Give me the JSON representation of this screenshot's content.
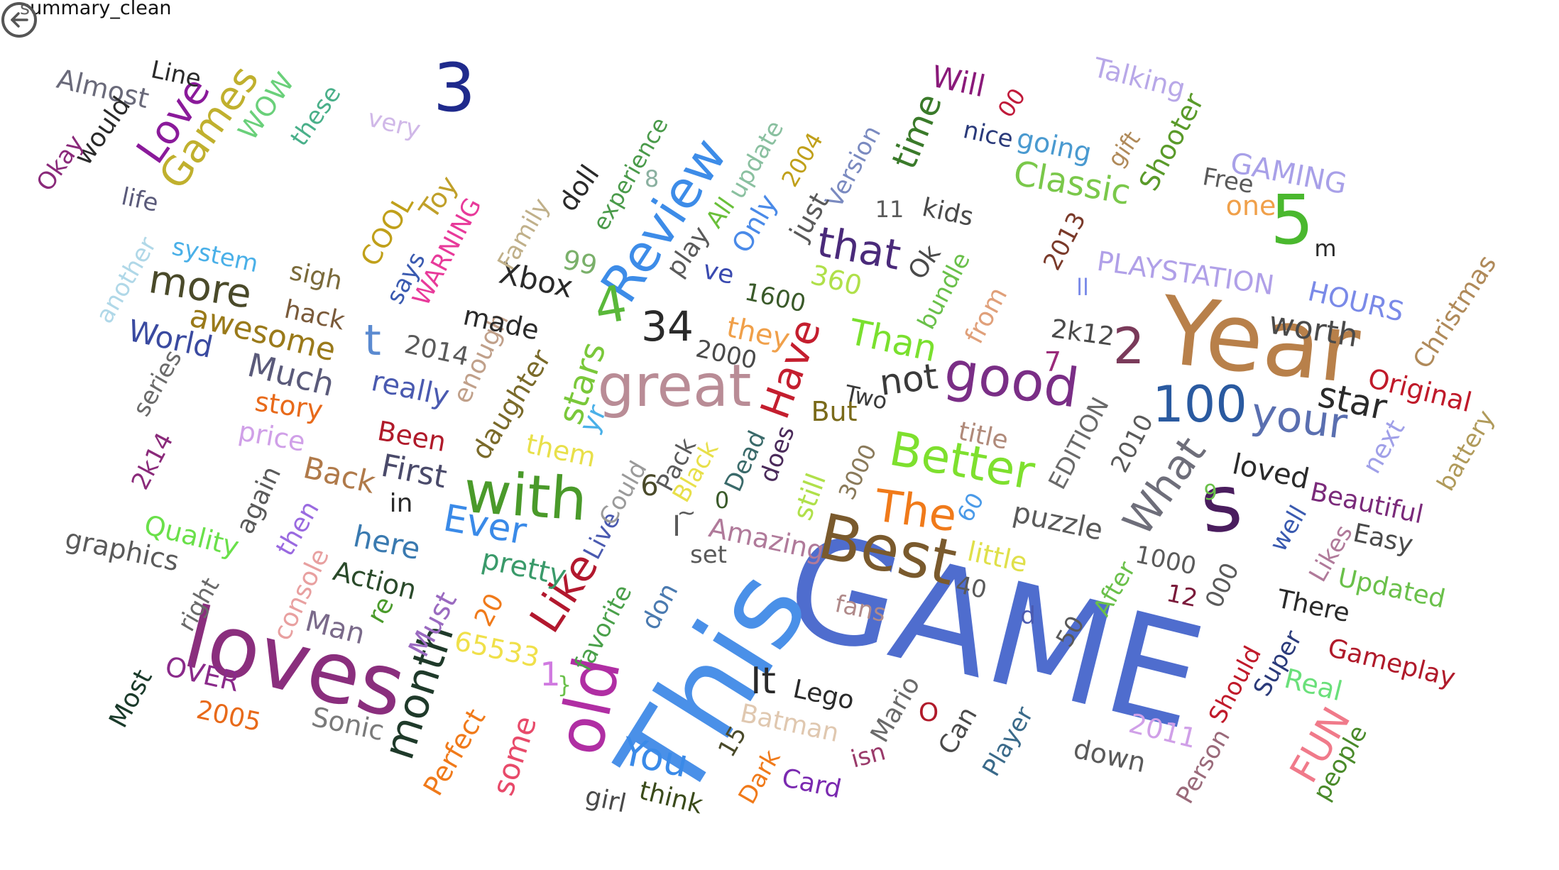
{
  "window": {
    "title": "summary_clean"
  },
  "back_button": {
    "icon": "back-arrow-icon"
  },
  "words": [
    {
      "text": "GAME",
      "color": "#4f6dce"
    },
    {
      "text": "This",
      "color": "#4a90e8"
    },
    {
      "text": "Year",
      "color": "#b8804a"
    },
    {
      "text": "loves",
      "color": "#8a2e7d"
    },
    {
      "text": "great",
      "color": "#b98c96"
    },
    {
      "text": "Best",
      "color": "#7a5a2d"
    },
    {
      "text": "old",
      "color": "#b02ea3"
    },
    {
      "text": "with",
      "color": "#4a9a2a"
    },
    {
      "text": "Review",
      "color": "#3d8ce8"
    },
    {
      "text": "good",
      "color": "#7a2e86"
    },
    {
      "text": "s",
      "color": "#4a1d5e"
    },
    {
      "text": "5",
      "color": "#4ab82e"
    },
    {
      "text": "3",
      "color": "#1f2a8c"
    },
    {
      "text": "Better",
      "color": "#7ee02e"
    },
    {
      "text": "Like",
      "color": "#b2182e"
    },
    {
      "text": "100",
      "color": "#2a5aa0"
    },
    {
      "text": "your",
      "color": "#5a6fb0"
    },
    {
      "text": "What",
      "color": "#6e6e7a"
    },
    {
      "text": "The",
      "color": "#f07a1a"
    },
    {
      "text": "month",
      "color": "#1f3a2a"
    },
    {
      "text": "Have",
      "color": "#c41e2e"
    },
    {
      "text": "4",
      "color": "#5ab83a"
    },
    {
      "text": "2",
      "color": "#7a3a5a"
    },
    {
      "text": "that",
      "color": "#4a2a7a"
    },
    {
      "text": "Games",
      "color": "#c0b02e"
    },
    {
      "text": "more",
      "color": "#4a4a2a"
    },
    {
      "text": "Love",
      "color": "#8a1a9a"
    },
    {
      "text": "34",
      "color": "#2a2a2a"
    },
    {
      "text": "You",
      "color": "#3a8ae8"
    },
    {
      "text": "FUN",
      "color": "#f07a8a"
    },
    {
      "text": "Ever",
      "color": "#3a8ae8"
    },
    {
      "text": "Classic",
      "color": "#7ac84a"
    },
    {
      "text": "Than",
      "color": "#7ae02e"
    },
    {
      "text": "star",
      "color": "#2a2a2a"
    },
    {
      "text": "not",
      "color": "#3a3a3a"
    },
    {
      "text": "t",
      "color": "#5a8ad0"
    },
    {
      "text": "stars",
      "color": "#7ac83a"
    },
    {
      "text": "time",
      "color": "#3a7a2a"
    },
    {
      "text": "awesome",
      "color": "#9a7a1a"
    },
    {
      "text": "worth",
      "color": "#4a4a4a"
    },
    {
      "text": "Much",
      "color": "#5a5a7a"
    },
    {
      "text": "World",
      "color": "#3a4aa0"
    },
    {
      "text": "Xbox",
      "color": "#2a2a2a"
    },
    {
      "text": "It",
      "color": "#2a2a2a"
    },
    {
      "text": "GAMING",
      "color": "#a8a0e8"
    },
    {
      "text": "HOURS",
      "color": "#7a8ae8"
    },
    {
      "text": "PLAYSTATION",
      "color": "#b0a0e8"
    },
    {
      "text": "Almost",
      "color": "#6a6a7a"
    },
    {
      "text": "WOW",
      "color": "#6ad07a"
    },
    {
      "text": "First",
      "color": "#4a4a6a"
    },
    {
      "text": "Back",
      "color": "#b07a4a"
    },
    {
      "text": "here",
      "color": "#3a7ab0"
    },
    {
      "text": "pretty",
      "color": "#3a9a6a"
    },
    {
      "text": "Perfect",
      "color": "#f07a1a"
    },
    {
      "text": "some",
      "color": "#e84a6a"
    },
    {
      "text": "Must",
      "color": "#9a6ac0"
    },
    {
      "text": "Amazing",
      "color": "#b07a9a"
    },
    {
      "text": "puzzle",
      "color": "#5a5a5a"
    },
    {
      "text": "loved",
      "color": "#2a2a2a"
    },
    {
      "text": "Beautiful",
      "color": "#7a2a7a"
    },
    {
      "text": "Gameplay",
      "color": "#b01a2a"
    },
    {
      "text": "Updated",
      "color": "#6ac04a"
    },
    {
      "text": "Christmas",
      "color": "#b08a5a"
    },
    {
      "text": "Original",
      "color": "#c01a2a"
    },
    {
      "text": "Talking",
      "color": "#b8a8e8"
    },
    {
      "text": "Shooter",
      "color": "#5a9a2a"
    },
    {
      "text": "Will",
      "color": "#8a1a7a"
    },
    {
      "text": "going",
      "color": "#4a9ad0"
    },
    {
      "text": "really",
      "color": "#4a5ab0"
    },
    {
      "text": "story",
      "color": "#e86a1a"
    },
    {
      "text": "price",
      "color": "#d0a0e8"
    },
    {
      "text": "Quality",
      "color": "#6ae04a"
    },
    {
      "text": "graphics",
      "color": "#5a5a5a"
    },
    {
      "text": "Action",
      "color": "#2a4a2a"
    },
    {
      "text": "console",
      "color": "#e8a0a0"
    },
    {
      "text": "Man",
      "color": "#7a6a8a"
    },
    {
      "text": "OVER",
      "color": "#8a2a8a"
    },
    {
      "text": "2005",
      "color": "#e86a1a"
    },
    {
      "text": "Sonic",
      "color": "#7a7a7a"
    },
    {
      "text": "Most",
      "color": "#1a3a2a"
    },
    {
      "text": "right",
      "color": "#6a6a6a"
    },
    {
      "text": "then",
      "color": "#9a6ae0"
    },
    {
      "text": "again",
      "color": "#5a5a5a"
    },
    {
      "text": "in",
      "color": "#2a2a2a"
    },
    {
      "text": "Been",
      "color": "#b01a2a"
    },
    {
      "text": "them",
      "color": "#e8e04a"
    },
    {
      "text": "daughter",
      "color": "#7a6a2a"
    },
    {
      "text": "enough",
      "color": "#c0a08a"
    },
    {
      "text": "2014",
      "color": "#5a5a5a"
    },
    {
      "text": "made",
      "color": "#2a2a2a"
    },
    {
      "text": "WARNING",
      "color": "#e83a9a"
    },
    {
      "text": "says",
      "color": "#3a5ab0"
    },
    {
      "text": "COOL",
      "color": "#c0a01a"
    },
    {
      "text": "Toy",
      "color": "#c0a02a"
    },
    {
      "text": "sigh",
      "color": "#7a6a3a"
    },
    {
      "text": "hack",
      "color": "#7a5a3a"
    },
    {
      "text": "another",
      "color": "#b0d8e8"
    },
    {
      "text": "system",
      "color": "#4ab0e8"
    },
    {
      "text": "series",
      "color": "#6a6a6a"
    },
    {
      "text": "2k14",
      "color": "#8a2a7a"
    },
    {
      "text": "life",
      "color": "#5a5a7a"
    },
    {
      "text": "would",
      "color": "#2a2a2a"
    },
    {
      "text": "Okay",
      "color": "#8a2a7a"
    },
    {
      "text": "Line",
      "color": "#2a2a2a"
    },
    {
      "text": "these",
      "color": "#4ab08a"
    },
    {
      "text": "very",
      "color": "#d0b8e8"
    },
    {
      "text": "Family",
      "color": "#c0b08a"
    },
    {
      "text": "doll",
      "color": "#2a2a2a"
    },
    {
      "text": "experience",
      "color": "#4a9a4a"
    },
    {
      "text": "8",
      "color": "#8ab0a0"
    },
    {
      "text": "update",
      "color": "#8ac0a0"
    },
    {
      "text": "All",
      "color": "#6ac03a"
    },
    {
      "text": "2004",
      "color": "#c0a01a"
    },
    {
      "text": "Only",
      "color": "#4a8ae8"
    },
    {
      "text": "Version",
      "color": "#7a8ac0"
    },
    {
      "text": "just",
      "color": "#5a5a5a"
    },
    {
      "text": "play",
      "color": "#5a5a5a"
    },
    {
      "text": "99",
      "color": "#7ab06a"
    },
    {
      "text": "ve",
      "color": "#3a4ab0"
    },
    {
      "text": "1600",
      "color": "#3a5a2a"
    },
    {
      "text": "360",
      "color": "#b0e04a"
    },
    {
      "text": "11",
      "color": "#5a5a5a"
    },
    {
      "text": "kids",
      "color": "#4a4a4a"
    },
    {
      "text": "Ok",
      "color": "#4a4a4a"
    },
    {
      "text": "nice",
      "color": "#2a3a7a"
    },
    {
      "text": "00",
      "color": "#c01a3a"
    },
    {
      "text": "gift",
      "color": "#b08a5a"
    },
    {
      "text": "Free",
      "color": "#5a5a5a"
    },
    {
      "text": "one",
      "color": "#f0a04a"
    },
    {
      "text": "m",
      "color": "#2a2a2a"
    },
    {
      "text": "2013",
      "color": "#7a3a2a"
    },
    {
      "text": "ll",
      "color": "#7a8ae8"
    },
    {
      "text": "bundle",
      "color": "#6ac04a"
    },
    {
      "text": "from",
      "color": "#e0a07a"
    },
    {
      "text": "they",
      "color": "#f0a04a"
    },
    {
      "text": "2000",
      "color": "#4a4a4a"
    },
    {
      "text": "2k12",
      "color": "#4a4a4a"
    },
    {
      "text": "7",
      "color": "#9a2a7a"
    },
    {
      "text": "Two",
      "color": "#3a3a3a"
    },
    {
      "text": "But",
      "color": "#7a6a1a"
    },
    {
      "text": "Dead",
      "color": "#3a6a6a"
    },
    {
      "text": "does",
      "color": "#4a2a5a"
    },
    {
      "text": "still",
      "color": "#b0e04a"
    },
    {
      "text": "3000",
      "color": "#8a7a5a"
    },
    {
      "text": "title",
      "color": "#b08a7a"
    },
    {
      "text": "EDITION",
      "color": "#6a6a6a"
    },
    {
      "text": "2010",
      "color": "#5a5a5a"
    },
    {
      "text": "9",
      "color": "#6ac04a"
    },
    {
      "text": "next",
      "color": "#a0a0e8"
    },
    {
      "text": "battery",
      "color": "#b09a5a"
    },
    {
      "text": "Easy",
      "color": "#4a4a4a"
    },
    {
      "text": "Likes",
      "color": "#b07a9a"
    },
    {
      "text": "well",
      "color": "#3a5ab0"
    },
    {
      "text": "There",
      "color": "#2a2a2a"
    },
    {
      "text": "Super",
      "color": "#2a3a7a"
    },
    {
      "text": "Real",
      "color": "#6ae07a"
    },
    {
      "text": "people",
      "color": "#4a8a2a"
    },
    {
      "text": "Should",
      "color": "#c01a2a"
    },
    {
      "text": "Person",
      "color": "#9a6a7a"
    },
    {
      "text": "000",
      "color": "#5a5a5a"
    },
    {
      "text": "12",
      "color": "#7a1a3a"
    },
    {
      "text": "1000",
      "color": "#5a5a5a"
    },
    {
      "text": "After",
      "color": "#6ac04a"
    },
    {
      "text": "50",
      "color": "#5a5a5a"
    },
    {
      "text": "d",
      "color": "#4a5ab0"
    },
    {
      "text": "40",
      "color": "#5a5a5a"
    },
    {
      "text": "little",
      "color": "#e0e04a"
    },
    {
      "text": "60",
      "color": "#4a9ae8"
    },
    {
      "text": "fans",
      "color": "#b08a8a"
    },
    {
      "text": "Mario",
      "color": "#6a6a6a"
    },
    {
      "text": "O",
      "color": "#b01a2a"
    },
    {
      "text": "Can",
      "color": "#4a4a4a"
    },
    {
      "text": "Player",
      "color": "#3a6a8a"
    },
    {
      "text": "down",
      "color": "#5a5a5a"
    },
    {
      "text": "2011",
      "color": "#d0a0e8"
    },
    {
      "text": "isn",
      "color": "#9a3a6a"
    },
    {
      "text": "Card",
      "color": "#7a2ab0"
    },
    {
      "text": "Dark",
      "color": "#f07a1a"
    },
    {
      "text": "Batman",
      "color": "#e0c8b0"
    },
    {
      "text": "Lego",
      "color": "#2a2a2a"
    },
    {
      "text": "15",
      "color": "#4a4a2a"
    },
    {
      "text": "think",
      "color": "#3a4a1a"
    },
    {
      "text": "girl",
      "color": "#4a4a4a"
    },
    {
      "text": "don",
      "color": "#4a7ab0"
    },
    {
      "text": "favorite",
      "color": "#4aa04a"
    },
    {
      "text": "set",
      "color": "#5a5a5a"
    },
    {
      "text": "Live",
      "color": "#4a5ab0"
    },
    {
      "text": "Could",
      "color": "#9a9a9a"
    },
    {
      "text": "6",
      "color": "#4a4a2a"
    },
    {
      "text": "Pack",
      "color": "#5a5a5a"
    },
    {
      "text": "Black",
      "color": "#e8e04a"
    },
    {
      "text": "0",
      "color": "#3a5a2a"
    },
    {
      "text": "~",
      "color": "#5a5a5a"
    },
    {
      "text": "I",
      "color": "#5a5a5a"
    },
    {
      "text": "yr",
      "color": "#4ab0e8"
    },
    {
      "text": "1",
      "color": "#d07ae0"
    },
    {
      "text": "}",
      "color": "#6ac04a"
    },
    {
      "text": "20",
      "color": "#f07a1a"
    },
    {
      "text": "re",
      "color": "#4a9a2a"
    },
    {
      "text": "65533",
      "color": "#f0e04a"
    }
  ]
}
